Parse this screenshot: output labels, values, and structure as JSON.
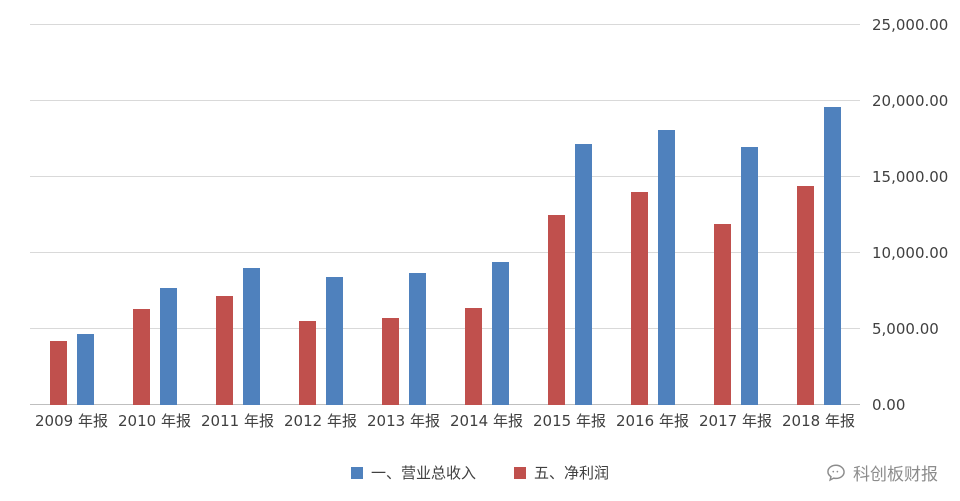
{
  "chart_data": {
    "type": "bar",
    "categories": [
      "2009 年报",
      "2010 年报",
      "2011 年报",
      "2012 年报",
      "2013 年报",
      "2014 年报",
      "2015 年报",
      "2016 年报",
      "2017 年报",
      "2018 年报"
    ],
    "series": [
      {
        "name": "五、净利润",
        "color": "#c0504d",
        "values": [
          4200,
          6300,
          7200,
          5500,
          5700,
          6400,
          12500,
          14000,
          11900,
          14400
        ]
      },
      {
        "name": "一、营业总收入",
        "color": "#4f81bd",
        "values": [
          4650,
          7700,
          9000,
          8400,
          8700,
          9400,
          17200,
          18100,
          17000,
          19600
        ]
      }
    ],
    "title": "",
    "xlabel": "",
    "ylabel": "",
    "ylim": [
      0,
      25000
    ],
    "ytick_step": 5000,
    "ytick_labels": [
      "0.00",
      "5,000.00",
      "10,000.00",
      "15,000.00",
      "20,000.00",
      "25,000.00"
    ],
    "grid": true,
    "legend_position": "bottom",
    "legend": [
      {
        "label": "一、营业总收入",
        "color": "#4f81bd"
      },
      {
        "label": "五、净利润",
        "color": "#c0504d"
      }
    ]
  },
  "watermark": {
    "text": "科创板财报"
  },
  "colors": {
    "gridline": "#d9d9d9",
    "axis_text": "#404040",
    "watermark_text": "#8c8c8c"
  }
}
